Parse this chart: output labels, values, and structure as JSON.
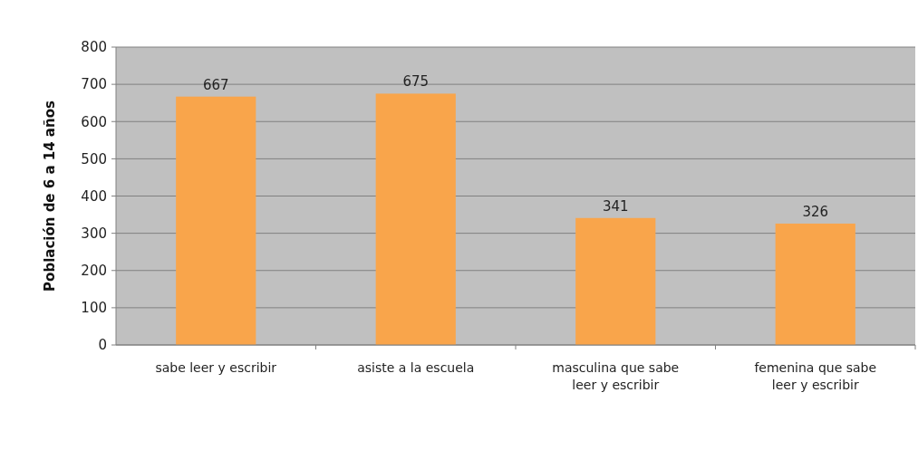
{
  "chart_data": {
    "type": "bar",
    "ylabel": "Población de 6 a 14 años",
    "categories": [
      "sabe leer y escribir",
      "asiste a la escuela",
      "masculina que sabe leer y escribir",
      "femenina que sabe leer y escribir"
    ],
    "values": [
      667,
      675,
      341,
      326
    ],
    "color": "#f9a54b",
    "ylim": [
      0,
      800
    ],
    "yticks": [
      0,
      100,
      200,
      300,
      400,
      500,
      600,
      700,
      800
    ],
    "grid": "y",
    "data_labels": true
  }
}
